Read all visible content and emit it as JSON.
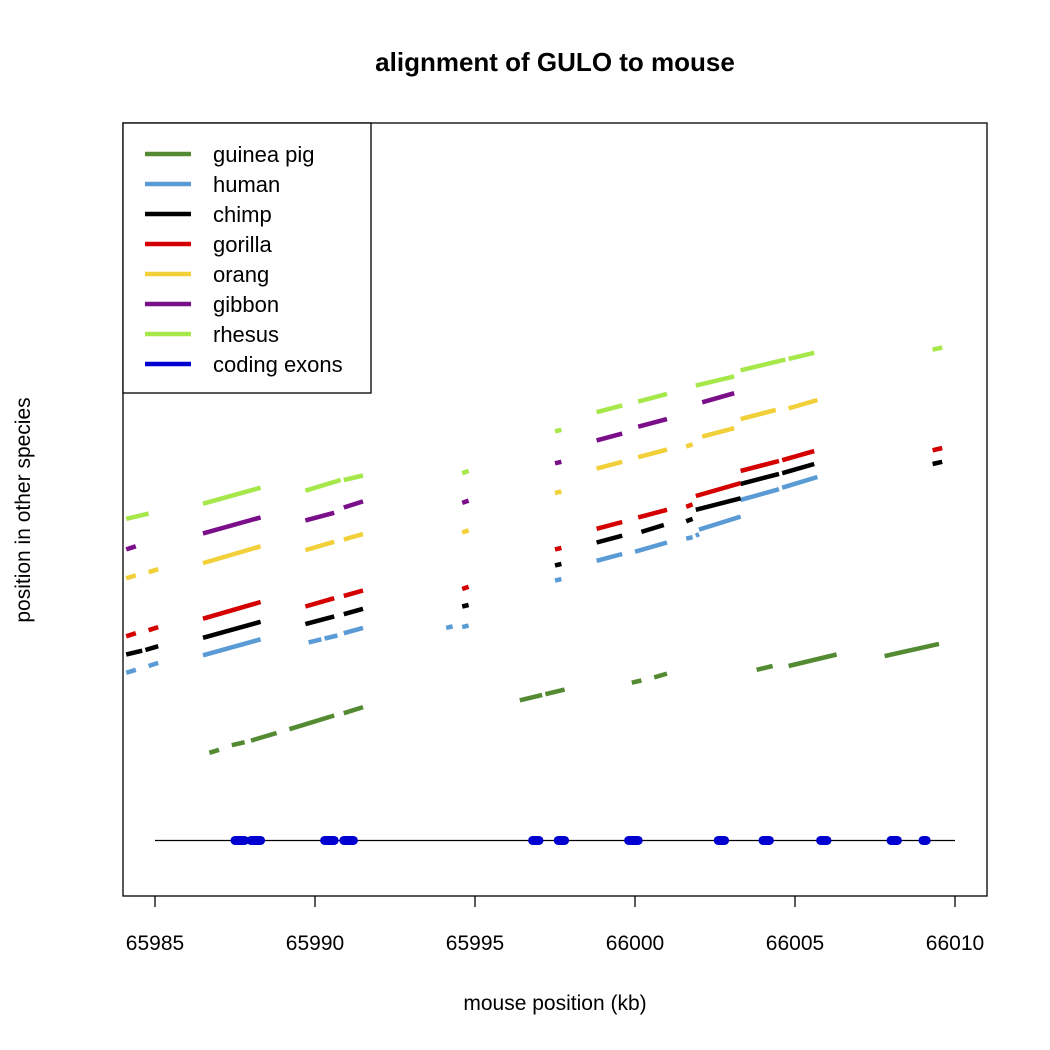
{
  "chart_data": {
    "type": "line",
    "title": "alignment of GULO to mouse",
    "xlabel": "mouse position (kb)",
    "ylabel": "position in other species",
    "xlim": [
      65984.0,
      66011.0
    ],
    "ylim": [
      0,
      100
    ],
    "x_ticks": [
      65985,
      65990,
      65995,
      66000,
      66005,
      66010
    ],
    "x_tick_labels": [
      "65985",
      "65990",
      "65995",
      "66000",
      "66005",
      "66010"
    ],
    "legend_position": "top-left",
    "series": [
      {
        "name": "guinea pig",
        "color": "#548b32",
        "segments": [
          [
            [
              65986.7,
              18.0
            ],
            [
              65987.0,
              18.4
            ]
          ],
          [
            [
              65987.4,
              19.0
            ],
            [
              65987.8,
              19.4
            ]
          ],
          [
            [
              65988.0,
              19.6
            ],
            [
              65988.8,
              20.6
            ]
          ],
          [
            [
              65989.2,
              21.1
            ],
            [
              65990.6,
              22.9
            ]
          ],
          [
            [
              65990.9,
              23.2
            ],
            [
              65991.5,
              24.0
            ]
          ],
          [
            [
              65996.4,
              24.9
            ],
            [
              65997.1,
              25.6
            ]
          ],
          [
            [
              65997.2,
              25.7
            ],
            [
              65997.8,
              26.3
            ]
          ],
          [
            [
              65999.9,
              27.2
            ],
            [
              66000.2,
              27.5
            ]
          ],
          [
            [
              66000.6,
              27.9
            ],
            [
              66001.0,
              28.4
            ]
          ],
          [
            [
              66003.8,
              28.9
            ],
            [
              66004.3,
              29.4
            ]
          ],
          [
            [
              66004.8,
              29.4
            ],
            [
              66006.3,
              30.9
            ]
          ],
          [
            [
              66007.8,
              30.7
            ],
            [
              66009.5,
              32.3
            ]
          ]
        ]
      },
      {
        "name": "human",
        "color": "#5b9bd5",
        "segments": [
          [
            [
              65984.1,
              28.5
            ],
            [
              65984.4,
              28.9
            ]
          ],
          [
            [
              65984.8,
              29.4
            ],
            [
              65985.1,
              29.8
            ]
          ],
          [
            [
              65986.5,
              30.8
            ],
            [
              65988.3,
              32.9
            ]
          ],
          [
            [
              65989.8,
              32.5
            ],
            [
              65990.2,
              32.9
            ]
          ],
          [
            [
              65990.3,
              33.0
            ],
            [
              65990.7,
              33.4
            ]
          ],
          [
            [
              65990.9,
              33.7
            ],
            [
              65991.5,
              34.4
            ]
          ],
          [
            [
              65994.1,
              34.4
            ],
            [
              65994.3,
              34.6
            ]
          ],
          [
            [
              65994.6,
              34.5
            ],
            [
              65994.8,
              34.7
            ]
          ],
          [
            [
              65997.5,
              40.6
            ],
            [
              65997.7,
              40.8
            ]
          ],
          [
            [
              65998.8,
              43.2
            ],
            [
              65999.6,
              44.1
            ]
          ],
          [
            [
              66000.0,
              44.4
            ],
            [
              66001.0,
              45.6
            ]
          ],
          [
            [
              66001.6,
              46.1
            ],
            [
              66001.8,
              46.3
            ]
          ],
          [
            [
              66001.9,
              46.5
            ],
            [
              66002.0,
              46.7
            ]
          ],
          [
            [
              66002.0,
              47.3
            ],
            [
              66003.3,
              49.0
            ]
          ],
          [
            [
              66003.3,
              51.2
            ],
            [
              66004.5,
              52.6
            ]
          ],
          [
            [
              66004.6,
              52.8
            ],
            [
              66005.7,
              54.2
            ]
          ]
        ]
      },
      {
        "name": "chimp",
        "color": "#000000",
        "segments": [
          [
            [
              65984.1,
              30.9
            ],
            [
              65984.6,
              31.4
            ]
          ],
          [
            [
              65984.7,
              31.5
            ],
            [
              65985.1,
              32.0
            ]
          ],
          [
            [
              65986.5,
              33.1
            ],
            [
              65988.3,
              35.2
            ]
          ],
          [
            [
              65989.7,
              34.9
            ],
            [
              65990.6,
              35.9
            ]
          ],
          [
            [
              65990.9,
              36.2
            ],
            [
              65991.5,
              36.9
            ]
          ],
          [
            [
              65994.6,
              37.2
            ],
            [
              65994.8,
              37.4
            ]
          ],
          [
            [
              65997.5,
              42.6
            ],
            [
              65997.7,
              42.8
            ]
          ],
          [
            [
              65998.8,
              45.6
            ],
            [
              65999.6,
              46.5
            ]
          ],
          [
            [
              66000.2,
              47.0
            ],
            [
              66000.9,
              47.9
            ]
          ],
          [
            [
              66001.6,
              48.4
            ],
            [
              66001.8,
              48.7
            ]
          ],
          [
            [
              66001.9,
              49.9
            ],
            [
              66003.3,
              51.4
            ]
          ],
          [
            [
              66003.3,
              53.3
            ],
            [
              66004.5,
              54.6
            ]
          ],
          [
            [
              66004.6,
              54.7
            ],
            [
              66005.6,
              55.9
            ]
          ],
          [
            [
              66009.3,
              55.9
            ],
            [
              66009.6,
              56.2
            ]
          ]
        ]
      },
      {
        "name": "gorilla",
        "color": "#d40000",
        "segments": [
          [
            [
              65984.1,
              33.3
            ],
            [
              65984.4,
              33.7
            ]
          ],
          [
            [
              65984.8,
              34.1
            ],
            [
              65985.1,
              34.5
            ]
          ],
          [
            [
              65986.5,
              35.6
            ],
            [
              65988.3,
              37.8
            ]
          ],
          [
            [
              65989.7,
              37.2
            ],
            [
              65990.6,
              38.3
            ]
          ],
          [
            [
              65990.9,
              38.6
            ],
            [
              65991.5,
              39.3
            ]
          ],
          [
            [
              65994.6,
              39.5
            ],
            [
              65994.8,
              39.8
            ]
          ],
          [
            [
              65997.5,
              44.7
            ],
            [
              65997.7,
              44.9
            ]
          ],
          [
            [
              65998.8,
              47.4
            ],
            [
              65999.6,
              48.3
            ]
          ],
          [
            [
              66000.1,
              48.9
            ],
            [
              66001.0,
              49.9
            ]
          ],
          [
            [
              66001.6,
              50.3
            ],
            [
              66001.8,
              50.6
            ]
          ],
          [
            [
              66001.9,
              51.7
            ],
            [
              66003.3,
              53.4
            ]
          ],
          [
            [
              66003.3,
              55.0
            ],
            [
              66004.5,
              56.3
            ]
          ],
          [
            [
              66004.6,
              56.4
            ],
            [
              66005.6,
              57.6
            ]
          ],
          [
            [
              66009.3,
              57.7
            ],
            [
              66009.6,
              58.0
            ]
          ]
        ]
      },
      {
        "name": "orang",
        "color": "#f2d03a",
        "segments": [
          [
            [
              65984.1,
              40.9
            ],
            [
              65984.4,
              41.3
            ]
          ],
          [
            [
              65984.8,
              41.7
            ],
            [
              65985.1,
              42.1
            ]
          ],
          [
            [
              65986.5,
              42.9
            ],
            [
              65988.3,
              45.1
            ]
          ],
          [
            [
              65989.7,
              44.6
            ],
            [
              65990.6,
              45.7
            ]
          ],
          [
            [
              65990.9,
              46.0
            ],
            [
              65991.5,
              46.7
            ]
          ],
          [
            [
              65994.6,
              46.9
            ],
            [
              65994.8,
              47.2
            ]
          ],
          [
            [
              65997.5,
              52.1
            ],
            [
              65997.7,
              52.3
            ]
          ],
          [
            [
              65998.8,
              55.3
            ],
            [
              65999.6,
              56.2
            ]
          ],
          [
            [
              66000.1,
              56.8
            ],
            [
              66001.0,
              57.8
            ]
          ],
          [
            [
              66001.6,
              58.2
            ],
            [
              66001.8,
              58.5
            ]
          ],
          [
            [
              66002.1,
              59.5
            ],
            [
              66003.1,
              60.6
            ]
          ],
          [
            [
              66003.3,
              61.8
            ],
            [
              66004.4,
              63.0
            ]
          ],
          [
            [
              66004.8,
              63.2
            ],
            [
              66005.7,
              64.3
            ]
          ]
        ]
      },
      {
        "name": "gibbon",
        "color": "#7b0f8a",
        "segments": [
          [
            [
              65984.1,
              44.7
            ],
            [
              65984.4,
              45.1
            ]
          ],
          [
            [
              65986.5,
              46.8
            ],
            [
              65988.3,
              48.9
            ]
          ],
          [
            [
              65989.7,
              48.5
            ],
            [
              65990.6,
              49.5
            ]
          ],
          [
            [
              65990.9,
              50.2
            ],
            [
              65991.5,
              51.0
            ]
          ],
          [
            [
              65994.6,
              50.8
            ],
            [
              65994.8,
              51.1
            ]
          ],
          [
            [
              65997.5,
              56.0
            ],
            [
              65997.7,
              56.2
            ]
          ],
          [
            [
              65998.8,
              59.0
            ],
            [
              65999.6,
              59.9
            ]
          ],
          [
            [
              66000.1,
              60.8
            ],
            [
              66001.0,
              61.8
            ]
          ],
          [
            [
              66002.1,
              64.0
            ],
            [
              66003.1,
              65.2
            ]
          ]
        ]
      },
      {
        "name": "rhesus",
        "color": "#a6e84a",
        "segments": [
          [
            [
              65984.1,
              48.7
            ],
            [
              65984.8,
              49.4
            ]
          ],
          [
            [
              65986.5,
              50.7
            ],
            [
              65988.3,
              52.8
            ]
          ],
          [
            [
              65989.7,
              52.4
            ],
            [
              65990.8,
              53.8
            ]
          ],
          [
            [
              65990.9,
              53.8
            ],
            [
              65991.5,
              54.4
            ]
          ],
          [
            [
              65994.6,
              54.7
            ],
            [
              65994.8,
              55.0
            ]
          ],
          [
            [
              65997.5,
              60.2
            ],
            [
              65997.7,
              60.4
            ]
          ],
          [
            [
              65998.8,
              62.7
            ],
            [
              65999.6,
              63.6
            ]
          ],
          [
            [
              66000.1,
              64.1
            ],
            [
              66001.0,
              65.1
            ]
          ],
          [
            [
              66001.9,
              66.2
            ],
            [
              66003.1,
              67.4
            ]
          ],
          [
            [
              66003.3,
              68.2
            ],
            [
              66004.7,
              69.6
            ]
          ],
          [
            [
              66004.8,
              69.7
            ],
            [
              66005.6,
              70.5
            ]
          ],
          [
            [
              66009.3,
              70.9
            ],
            [
              66009.6,
              71.2
            ]
          ]
        ]
      }
    ],
    "exons": {
      "name": "coding exons",
      "color": "#0000d0",
      "line_start": 65985.0,
      "line_end": 66010.0,
      "y": 6.5,
      "intervals": [
        [
          65987.5,
          65987.8
        ],
        [
          65988.0,
          65988.3
        ],
        [
          65990.3,
          65990.6
        ],
        [
          65990.9,
          65991.2
        ],
        [
          65996.8,
          65997.0
        ],
        [
          65997.6,
          65997.8
        ],
        [
          65999.8,
          66000.1
        ],
        [
          66002.6,
          66002.8
        ],
        [
          66004.0,
          66004.2
        ],
        [
          66005.8,
          66006.0
        ],
        [
          66008.0,
          66008.2
        ],
        [
          66009.0,
          66009.1
        ]
      ]
    }
  }
}
